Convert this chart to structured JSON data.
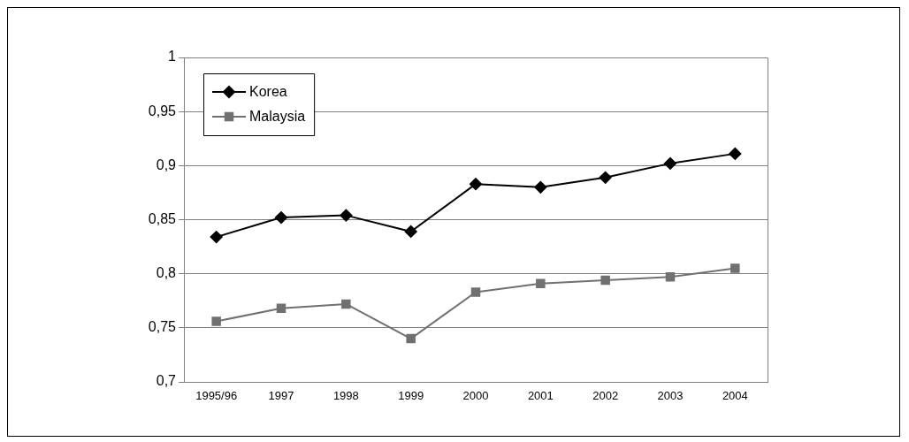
{
  "chart_data": {
    "type": "line",
    "categories": [
      "1995/96",
      "1997",
      "1998",
      "1999",
      "2000",
      "2001",
      "2002",
      "2003",
      "2004"
    ],
    "series": [
      {
        "name": "Korea",
        "color": "#000000",
        "marker": "diamond",
        "values": [
          0.834,
          0.852,
          0.854,
          0.839,
          0.883,
          0.88,
          0.889,
          0.902,
          0.911
        ]
      },
      {
        "name": "Malaysia",
        "color": "#707070",
        "marker": "square",
        "values": [
          0.756,
          0.768,
          0.772,
          0.74,
          0.783,
          0.791,
          0.794,
          0.797,
          0.805
        ]
      }
    ],
    "ylim": [
      0.7,
      1
    ],
    "yticks": [
      {
        "value": 0.7,
        "label": "0,7"
      },
      {
        "value": 0.75,
        "label": "0,75"
      },
      {
        "value": 0.8,
        "label": "0,8"
      },
      {
        "value": 0.85,
        "label": "0,85"
      },
      {
        "value": 0.9,
        "label": "0,9"
      },
      {
        "value": 0.95,
        "label": "0,95"
      },
      {
        "value": 1,
        "label": "1"
      }
    ],
    "grid": "y",
    "legend": "top left",
    "line_style": "solid"
  }
}
